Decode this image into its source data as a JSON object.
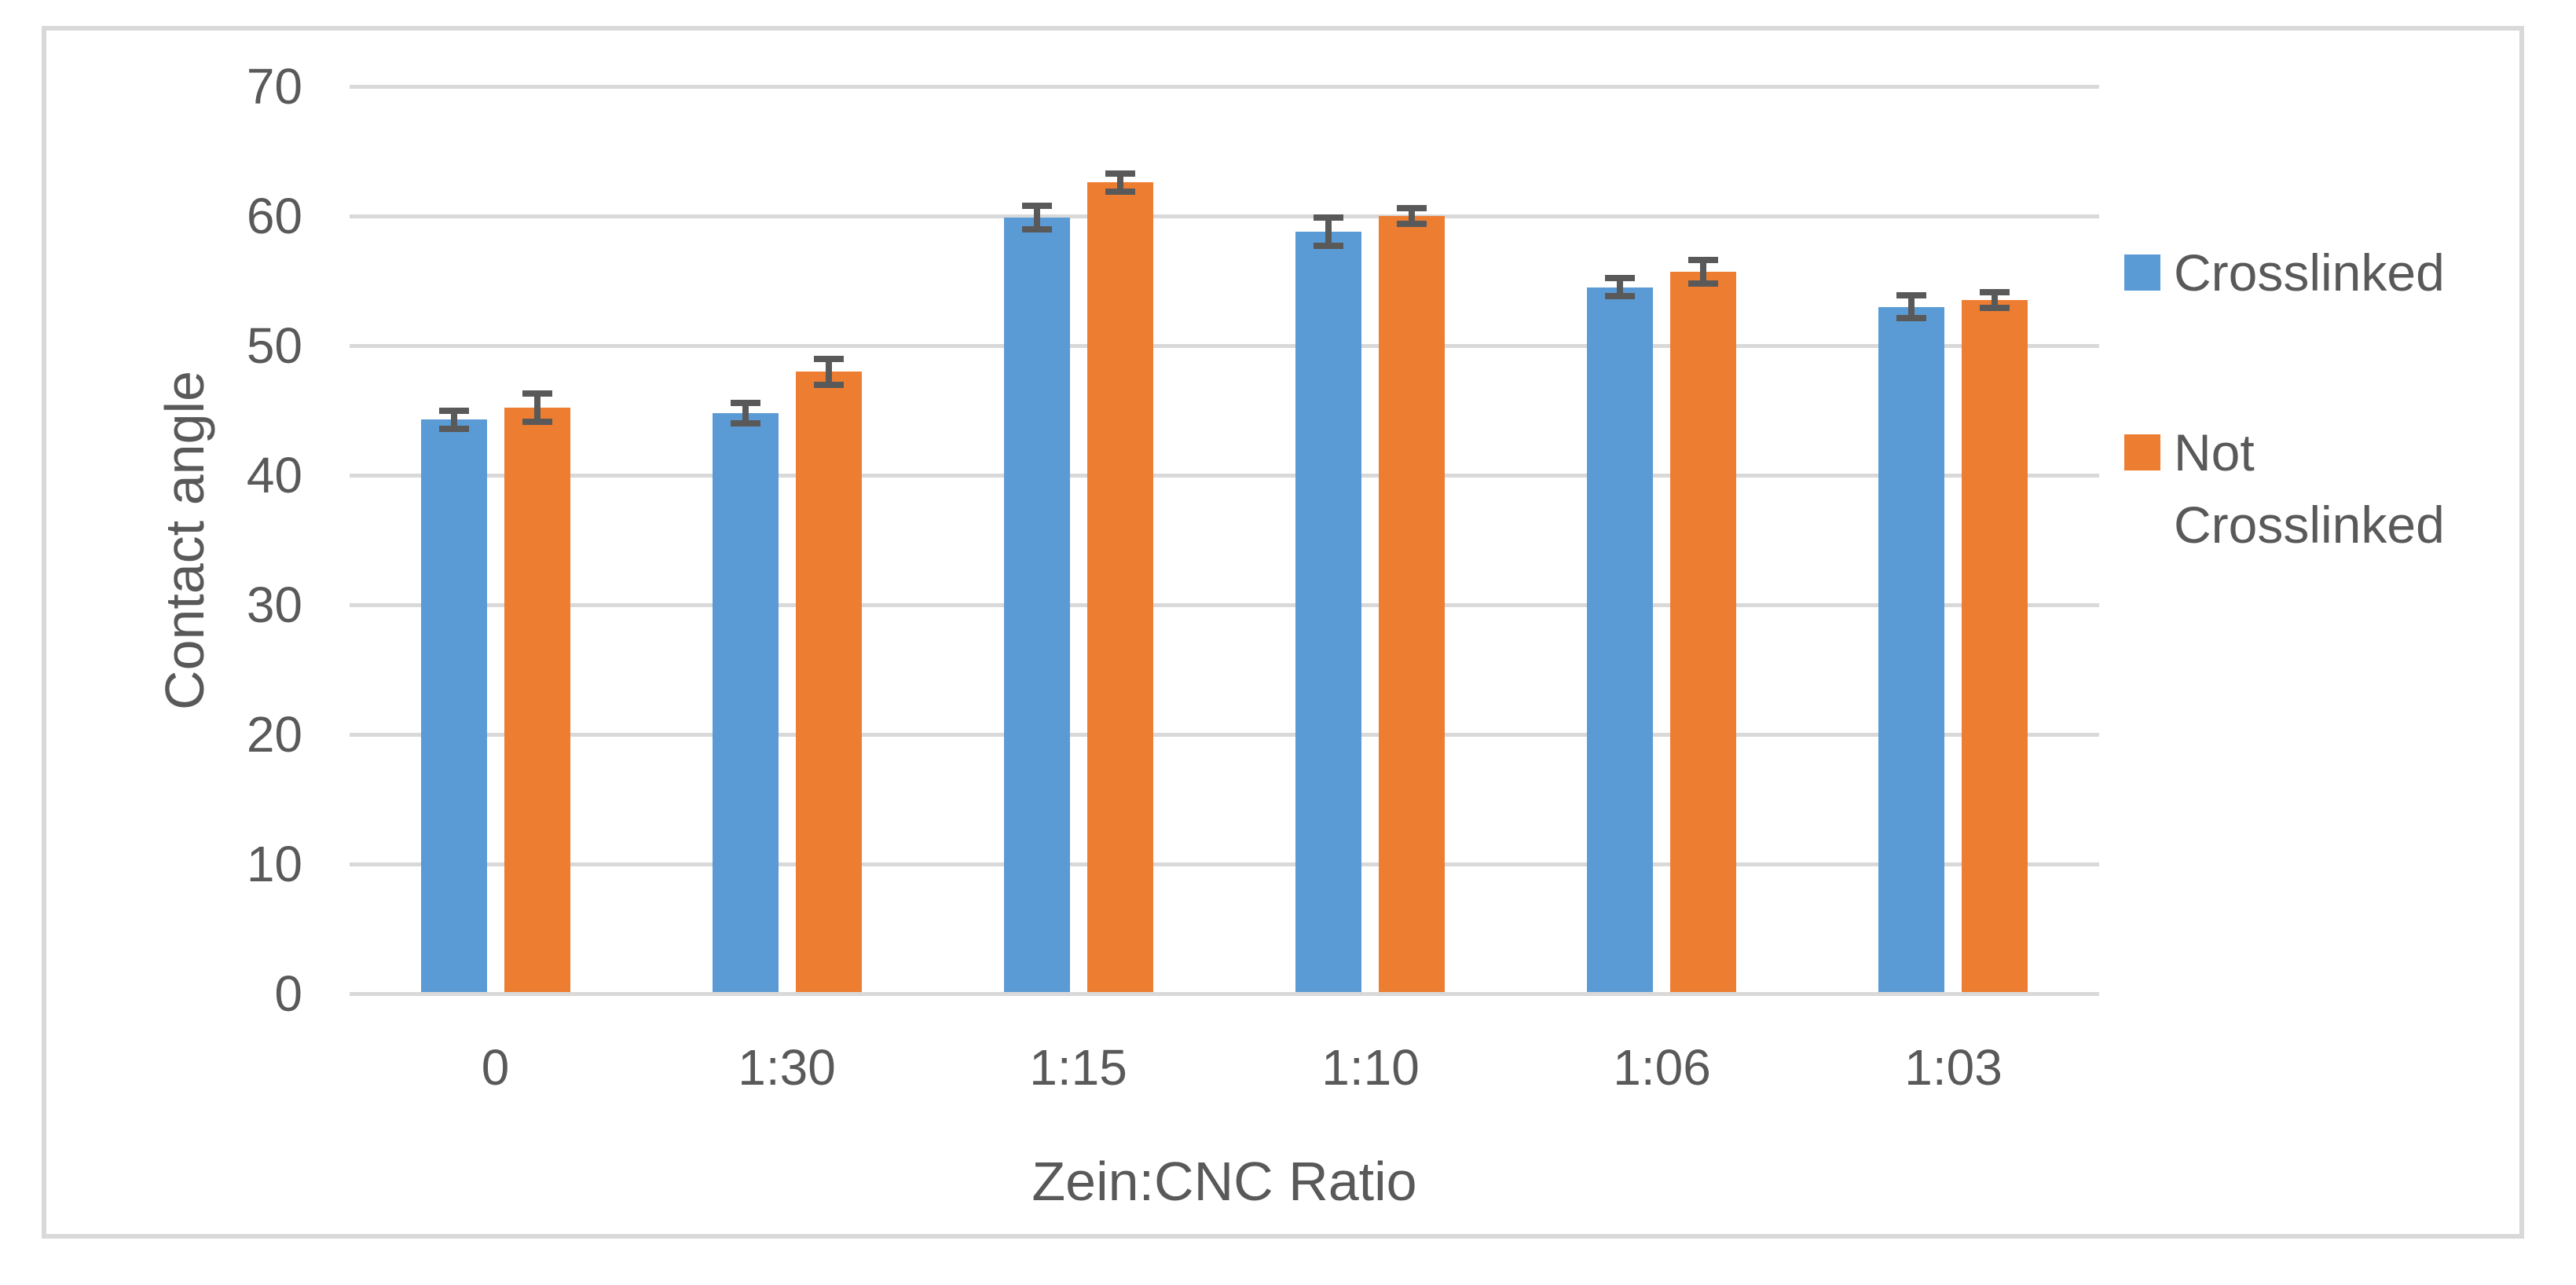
{
  "chart_data": {
    "type": "bar",
    "title": "",
    "xlabel": "Zein:CNC Ratio",
    "ylabel": "Contact angle",
    "categories": [
      "0",
      "1:30",
      "1:15",
      "1:10",
      "1:06",
      "1:03"
    ],
    "series": [
      {
        "name": "Crosslinked",
        "color": "#5B9BD5",
        "values": [
          44.3,
          44.8,
          59.9,
          58.8,
          54.5,
          53.0
        ],
        "errors": [
          0.7,
          0.8,
          0.9,
          1.1,
          0.7,
          0.9
        ]
      },
      {
        "name": "Not Crosslinked",
        "color": "#ED7D31",
        "values": [
          45.2,
          48.0,
          62.6,
          60.0,
          55.7,
          53.5
        ],
        "errors": [
          1.1,
          1.0,
          0.7,
          0.6,
          0.9,
          0.6
        ]
      }
    ],
    "ylim": [
      0,
      70
    ],
    "y_ticks": [
      0,
      10,
      20,
      30,
      40,
      50,
      60,
      70
    ],
    "grid": true,
    "error_bars": true,
    "legend_position": "right-middle"
  },
  "styles": {
    "background_color": "#FFFFFF",
    "text_color": "#595959",
    "gridline_color": "#D9D9D9",
    "chart_border_color": "#D9D9D9",
    "error_bar_color": "#595959",
    "series_colors": [
      "#5B9BD5",
      "#ED7D31"
    ]
  }
}
